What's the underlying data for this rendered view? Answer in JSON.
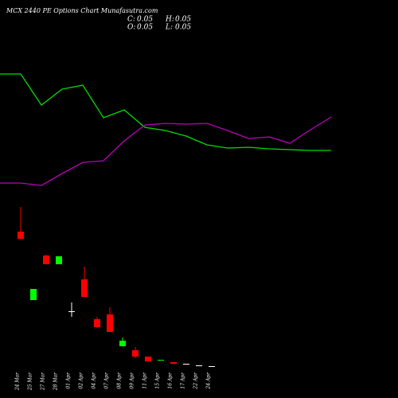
{
  "chart_data": [
    {
      "type": "candlestick",
      "title": "MCX 2440 PE Options Chart Munafasutra.com",
      "annotations": [
        {
          "label": "C:",
          "value": 0.05
        },
        {
          "label": "H:",
          "value": 0.05
        },
        {
          "label": "O:",
          "value": 0.05
        },
        {
          "label": "L:",
          "value": 0.05
        }
      ],
      "categories": [
        "24 Mar",
        "25 Mar",
        "27 Mar",
        "28 Mar",
        "01 Apr",
        "02 Apr",
        "04 Apr",
        "07 Apr",
        "08 Apr",
        "09 Apr",
        "11 Apr",
        "15 Apr",
        "16 Apr",
        "17 Apr",
        "22 Apr",
        "24 Apr"
      ],
      "open": [
        8.7,
        4.4,
        7.2,
        6.65,
        3.7,
        5.7,
        3.2,
        3.5,
        1.5,
        1.25,
        0.85,
        0.6,
        0.5,
        0.4,
        0.3,
        0.25
      ],
      "high": [
        10.25,
        5.1,
        7.25,
        7.15,
        4.25,
        6.5,
        3.35,
        3.95,
        2.05,
        1.45,
        0.85,
        0.65,
        0.5,
        0.4,
        0.3,
        0.25
      ],
      "low": [
        8.25,
        4.4,
        6.65,
        6.65,
        3.35,
        4.6,
        2.65,
        2.4,
        1.5,
        0.75,
        0.55,
        0.6,
        0.4,
        0.4,
        0.3,
        0.25
      ],
      "close": [
        8.25,
        5.1,
        6.65,
        7.15,
        3.7,
        4.6,
        2.7,
        2.4,
        1.85,
        0.85,
        0.55,
        0.65,
        0.4,
        0.4,
        0.3,
        0.25
      ],
      "up_color": "#00ff00",
      "down_color": "#ff0000",
      "ylim": [
        0,
        10.75
      ]
    },
    {
      "type": "line",
      "categories": [
        null,
        null,
        null,
        null,
        null,
        null,
        null,
        null,
        null,
        null,
        null,
        null,
        null,
        null,
        null,
        null,
        null
      ],
      "series": [
        {
          "color": "#00dd00",
          "values": [
            83.5,
            83.5,
            64,
            74,
            76.5,
            56,
            61,
            50,
            48,
            44.5,
            39,
            37,
            37.5,
            36.5,
            36,
            35.5,
            35.5
          ]
        },
        {
          "color": "#bb00bb",
          "values": [
            15,
            15,
            13.5,
            21,
            28,
            29,
            41.5,
            51.5,
            52.5,
            52,
            52.5,
            48,
            43,
            44,
            40,
            48.5,
            56.5
          ]
        }
      ],
      "ylim": [
        0,
        100
      ]
    }
  ]
}
